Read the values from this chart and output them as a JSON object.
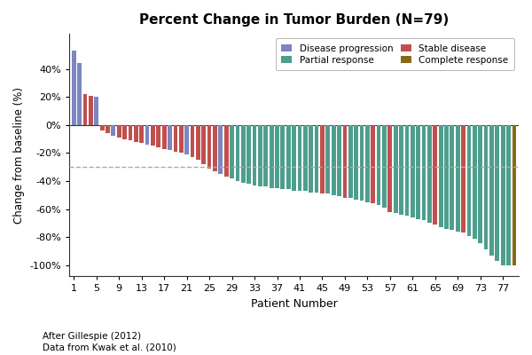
{
  "title": "Percent Change in Tumor Burden (N=79)",
  "xlabel": "Patient Number",
  "ylabel": "Change from baseline (%)",
  "footnote1": "After Gillespie (2012)",
  "footnote2": "Data from Kwak et al. (2010)",
  "dashed_line_y": -30,
  "colors": {
    "Disease progression": "#7B86C2",
    "Stable disease": "#C0504D",
    "Partial response": "#4E9E8E",
    "Complete response": "#8B6914"
  },
  "yticks": [
    -100,
    -80,
    -60,
    -40,
    -20,
    0,
    20,
    40
  ],
  "ytick_labels": [
    "-100%",
    "-80%",
    "-60%",
    "-40%",
    "-20%",
    "0%",
    "20%",
    "40%"
  ],
  "xticks": [
    1,
    5,
    9,
    13,
    17,
    21,
    25,
    29,
    33,
    37,
    41,
    45,
    49,
    53,
    57,
    61,
    65,
    69,
    73,
    77
  ],
  "patients": [
    {
      "id": 1,
      "value": 53,
      "category": "Disease progression"
    },
    {
      "id": 2,
      "value": 44,
      "category": "Disease progression"
    },
    {
      "id": 3,
      "value": 22,
      "category": "Stable disease"
    },
    {
      "id": 4,
      "value": 21,
      "category": "Stable disease"
    },
    {
      "id": 5,
      "value": 20,
      "category": "Disease progression"
    },
    {
      "id": 6,
      "value": -4,
      "category": "Stable disease"
    },
    {
      "id": 7,
      "value": -6,
      "category": "Stable disease"
    },
    {
      "id": 8,
      "value": -8,
      "category": "Disease progression"
    },
    {
      "id": 9,
      "value": -9,
      "category": "Stable disease"
    },
    {
      "id": 10,
      "value": -10,
      "category": "Stable disease"
    },
    {
      "id": 11,
      "value": -11,
      "category": "Stable disease"
    },
    {
      "id": 12,
      "value": -12,
      "category": "Stable disease"
    },
    {
      "id": 13,
      "value": -13,
      "category": "Stable disease"
    },
    {
      "id": 14,
      "value": -14,
      "category": "Disease progression"
    },
    {
      "id": 15,
      "value": -15,
      "category": "Stable disease"
    },
    {
      "id": 16,
      "value": -16,
      "category": "Stable disease"
    },
    {
      "id": 17,
      "value": -17,
      "category": "Stable disease"
    },
    {
      "id": 18,
      "value": -18,
      "category": "Disease progression"
    },
    {
      "id": 19,
      "value": -19,
      "category": "Stable disease"
    },
    {
      "id": 20,
      "value": -20,
      "category": "Stable disease"
    },
    {
      "id": 21,
      "value": -21,
      "category": "Disease progression"
    },
    {
      "id": 22,
      "value": -23,
      "category": "Stable disease"
    },
    {
      "id": 23,
      "value": -25,
      "category": "Stable disease"
    },
    {
      "id": 24,
      "value": -28,
      "category": "Stable disease"
    },
    {
      "id": 25,
      "value": -31,
      "category": "Stable disease"
    },
    {
      "id": 26,
      "value": -33,
      "category": "Stable disease"
    },
    {
      "id": 27,
      "value": -35,
      "category": "Disease progression"
    },
    {
      "id": 28,
      "value": -37,
      "category": "Stable disease"
    },
    {
      "id": 29,
      "value": -38,
      "category": "Partial response"
    },
    {
      "id": 30,
      "value": -40,
      "category": "Partial response"
    },
    {
      "id": 31,
      "value": -41,
      "category": "Partial response"
    },
    {
      "id": 32,
      "value": -42,
      "category": "Partial response"
    },
    {
      "id": 33,
      "value": -43,
      "category": "Partial response"
    },
    {
      "id": 34,
      "value": -44,
      "category": "Partial response"
    },
    {
      "id": 35,
      "value": -44,
      "category": "Partial response"
    },
    {
      "id": 36,
      "value": -45,
      "category": "Partial response"
    },
    {
      "id": 37,
      "value": -45,
      "category": "Partial response"
    },
    {
      "id": 38,
      "value": -46,
      "category": "Partial response"
    },
    {
      "id": 39,
      "value": -46,
      "category": "Partial response"
    },
    {
      "id": 40,
      "value": -47,
      "category": "Partial response"
    },
    {
      "id": 41,
      "value": -47,
      "category": "Partial response"
    },
    {
      "id": 42,
      "value": -47,
      "category": "Partial response"
    },
    {
      "id": 43,
      "value": -48,
      "category": "Partial response"
    },
    {
      "id": 44,
      "value": -48,
      "category": "Partial response"
    },
    {
      "id": 45,
      "value": -49,
      "category": "Stable disease"
    },
    {
      "id": 46,
      "value": -49,
      "category": "Partial response"
    },
    {
      "id": 47,
      "value": -50,
      "category": "Partial response"
    },
    {
      "id": 48,
      "value": -51,
      "category": "Partial response"
    },
    {
      "id": 49,
      "value": -52,
      "category": "Stable disease"
    },
    {
      "id": 50,
      "value": -52,
      "category": "Partial response"
    },
    {
      "id": 51,
      "value": -53,
      "category": "Partial response"
    },
    {
      "id": 52,
      "value": -54,
      "category": "Partial response"
    },
    {
      "id": 53,
      "value": -55,
      "category": "Partial response"
    },
    {
      "id": 54,
      "value": -56,
      "category": "Stable disease"
    },
    {
      "id": 55,
      "value": -57,
      "category": "Partial response"
    },
    {
      "id": 56,
      "value": -59,
      "category": "Partial response"
    },
    {
      "id": 57,
      "value": -62,
      "category": "Stable disease"
    },
    {
      "id": 58,
      "value": -63,
      "category": "Partial response"
    },
    {
      "id": 59,
      "value": -64,
      "category": "Partial response"
    },
    {
      "id": 60,
      "value": -65,
      "category": "Partial response"
    },
    {
      "id": 61,
      "value": -66,
      "category": "Partial response"
    },
    {
      "id": 62,
      "value": -67,
      "category": "Partial response"
    },
    {
      "id": 63,
      "value": -68,
      "category": "Partial response"
    },
    {
      "id": 64,
      "value": -70,
      "category": "Partial response"
    },
    {
      "id": 65,
      "value": -71,
      "category": "Stable disease"
    },
    {
      "id": 66,
      "value": -73,
      "category": "Partial response"
    },
    {
      "id": 67,
      "value": -74,
      "category": "Partial response"
    },
    {
      "id": 68,
      "value": -75,
      "category": "Partial response"
    },
    {
      "id": 69,
      "value": -76,
      "category": "Partial response"
    },
    {
      "id": 70,
      "value": -77,
      "category": "Stable disease"
    },
    {
      "id": 71,
      "value": -79,
      "category": "Partial response"
    },
    {
      "id": 72,
      "value": -81,
      "category": "Partial response"
    },
    {
      "id": 73,
      "value": -84,
      "category": "Partial response"
    },
    {
      "id": 74,
      "value": -89,
      "category": "Partial response"
    },
    {
      "id": 75,
      "value": -93,
      "category": "Partial response"
    },
    {
      "id": 76,
      "value": -97,
      "category": "Partial response"
    },
    {
      "id": 77,
      "value": -100,
      "category": "Partial response"
    },
    {
      "id": 78,
      "value": -100,
      "category": "Partial response"
    },
    {
      "id": 79,
      "value": -100,
      "category": "Complete response"
    }
  ]
}
